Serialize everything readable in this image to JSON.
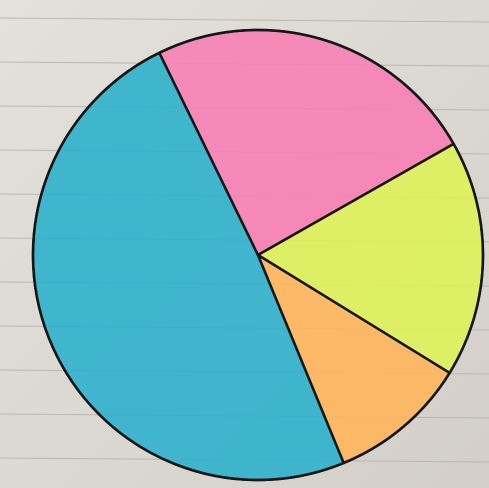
{
  "chart_data": {
    "type": "pie",
    "values": [
      49,
      24,
      17,
      10
    ],
    "colors": [
      "#2fb1cc",
      "#f77fb4",
      "#def25a",
      "#ffb65c"
    ]
  }
}
